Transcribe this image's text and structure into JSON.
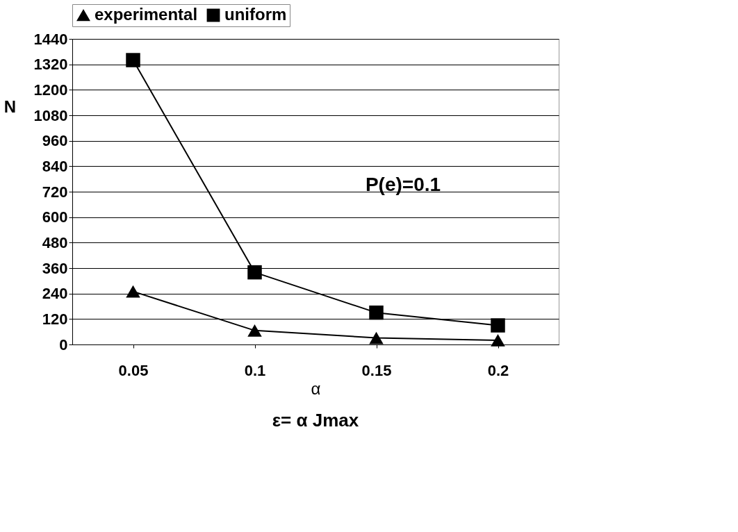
{
  "chart_data": {
    "type": "line",
    "categories": [
      "0.05",
      "0.1",
      "0.15",
      "0.2"
    ],
    "series": [
      {
        "name": "experimental",
        "color": "#000000",
        "marker": "triangle",
        "values": [
          250,
          66,
          31,
          20
        ]
      },
      {
        "name": "uniform",
        "color": "#000000",
        "marker": "square",
        "values": [
          1340,
          340,
          150,
          90
        ]
      }
    ],
    "xlabel": "α",
    "ylabel": "N",
    "ylim": [
      0,
      1440
    ],
    "yticks": [
      0,
      120,
      240,
      360,
      480,
      600,
      720,
      840,
      960,
      1080,
      1200,
      1320,
      1440
    ],
    "grid": "y",
    "legend": "top",
    "line_style": "solid",
    "annotations": [
      "P(e)=0.1",
      "ε= α Jmax"
    ]
  }
}
